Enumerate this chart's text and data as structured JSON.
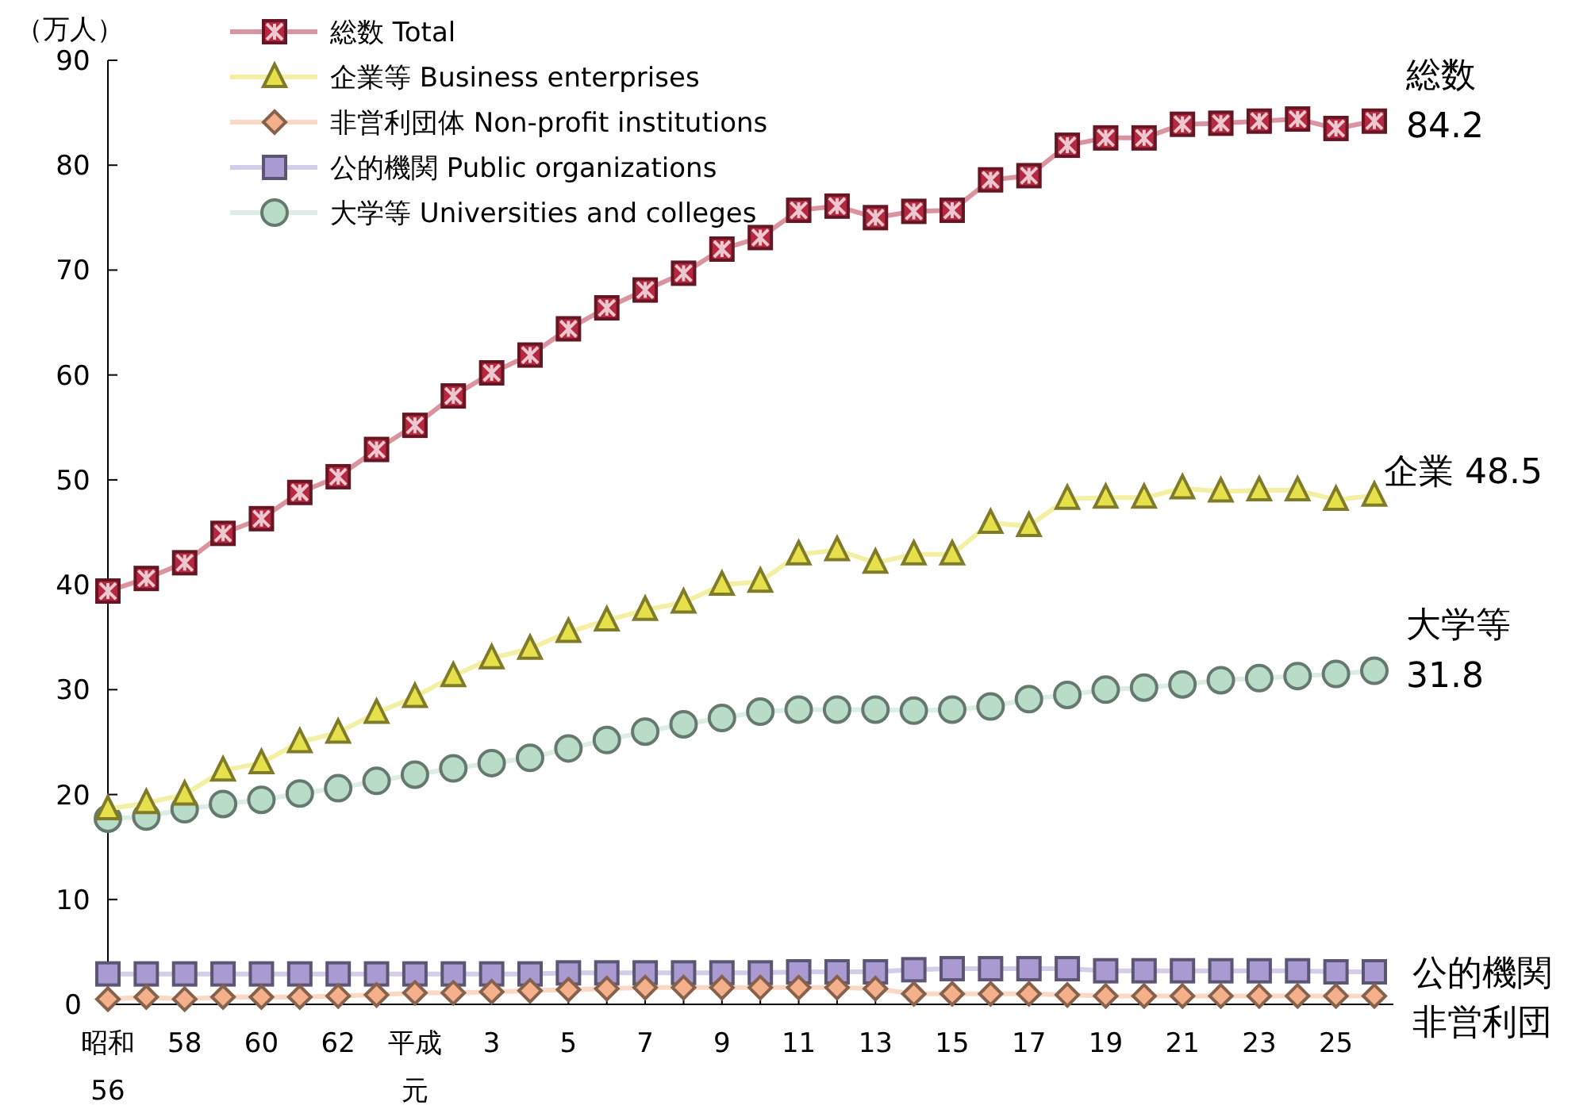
{
  "chart_data": {
    "type": "line",
    "ylabel": "（万人）",
    "categories": [
      "昭和56",
      null,
      "58",
      null,
      "60",
      null,
      "62",
      null,
      "平成元",
      null,
      "3",
      null,
      "5",
      null,
      "7",
      null,
      "9",
      null,
      "11",
      null,
      "13",
      null,
      "15",
      null,
      "17",
      null,
      "19",
      null,
      "21",
      null,
      "23",
      null,
      "25",
      null
    ],
    "ylim": [
      0,
      90
    ],
    "yticks": [
      0,
      10,
      20,
      30,
      40,
      50,
      60,
      70,
      80,
      90
    ],
    "grid": false,
    "legend": "top left",
    "series": [
      {
        "name": "総数 Total",
        "color": "#b52840",
        "marker": "square",
        "values": [
          39.4,
          40.6,
          42.1,
          44.9,
          46.3,
          48.8,
          50.3,
          52.9,
          55.2,
          58.0,
          60.2,
          61.9,
          64.4,
          66.4,
          68.1,
          69.7,
          72.0,
          73.1,
          75.7,
          76.1,
          75.0,
          75.6,
          75.7,
          78.6,
          79.0,
          81.9,
          82.6,
          82.6,
          83.9,
          84.0,
          84.2,
          84.4,
          83.5,
          84.2
        ]
      },
      {
        "name": "企業等 Business enterprises",
        "color": "#e6e04a",
        "marker": "triangle",
        "values": [
          18.6,
          19.2,
          20.0,
          22.3,
          23.0,
          25.0,
          25.9,
          27.8,
          29.3,
          31.3,
          33.0,
          33.9,
          35.5,
          36.6,
          37.6,
          38.3,
          40.0,
          40.3,
          42.9,
          43.3,
          42.1,
          42.9,
          42.9,
          45.9,
          45.6,
          48.2,
          48.3,
          48.3,
          49.2,
          48.9,
          49.0,
          49.0,
          48.1,
          48.5
        ]
      },
      {
        "name": "非営利団体 Non-profit institutions",
        "color": "#f3b08a",
        "marker": "diamond",
        "values": [
          0.5,
          0.7,
          0.5,
          0.7,
          0.7,
          0.7,
          0.8,
          0.9,
          1.1,
          1.1,
          1.2,
          1.3,
          1.4,
          1.5,
          1.6,
          1.6,
          1.6,
          1.6,
          1.6,
          1.6,
          1.5,
          1.0,
          1.0,
          1.0,
          1.0,
          0.9,
          0.8,
          0.8,
          0.8,
          0.8,
          0.8,
          0.8,
          0.8,
          0.8
        ]
      },
      {
        "name": "公的機関 Public organizations",
        "color": "#a99ad2",
        "marker": "square",
        "values": [
          2.9,
          2.9,
          2.9,
          2.9,
          2.9,
          2.9,
          2.9,
          2.9,
          2.9,
          2.9,
          2.9,
          2.9,
          3.0,
          3.0,
          3.0,
          3.0,
          3.0,
          3.0,
          3.1,
          3.1,
          3.1,
          3.3,
          3.4,
          3.4,
          3.4,
          3.4,
          3.2,
          3.2,
          3.2,
          3.2,
          3.2,
          3.2,
          3.1,
          3.1
        ]
      },
      {
        "name": "大学等 Universities and colleges",
        "color": "#b8dcc8",
        "marker": "circle",
        "values": [
          17.7,
          17.9,
          18.6,
          19.1,
          19.5,
          20.1,
          20.6,
          21.3,
          21.9,
          22.5,
          23.0,
          23.5,
          24.4,
          25.2,
          26.0,
          26.7,
          27.3,
          27.9,
          28.1,
          28.1,
          28.1,
          28.0,
          28.1,
          28.4,
          29.1,
          29.5,
          30.0,
          30.2,
          30.5,
          30.9,
          31.1,
          31.3,
          31.5,
          31.8
        ]
      }
    ],
    "annotations": [
      "総数\n84.2",
      "企業 48.5",
      "大学等\n31.8",
      "公的機関",
      "非営利団"
    ]
  }
}
